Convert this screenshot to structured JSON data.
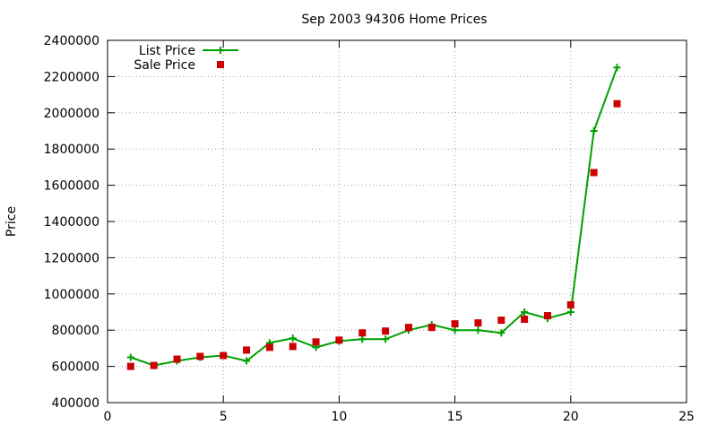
{
  "chart_data": {
    "type": "line",
    "title": "Sep 2003 94306 Home Prices",
    "xlabel": "",
    "ylabel": "Price",
    "xlim": [
      0,
      25
    ],
    "ylim": [
      400000,
      2400000
    ],
    "x_ticks": [
      "0",
      "5",
      "10",
      "15",
      "20",
      "25"
    ],
    "y_ticks": [
      "400000",
      "600000",
      "800000",
      "1000000",
      "1200000",
      "1400000",
      "1600000",
      "1800000",
      "2000000",
      "2200000",
      "2400000"
    ],
    "grid": true,
    "legend_position": "top-left",
    "series": [
      {
        "name": "List Price",
        "style": "line-with-plus-markers",
        "color": "#00a000",
        "points": [
          [
            1,
            650000
          ],
          [
            2,
            605000
          ],
          [
            3,
            630000
          ],
          [
            4,
            650000
          ],
          [
            5,
            660000
          ],
          [
            6,
            630000
          ],
          [
            7,
            730000
          ],
          [
            8,
            755000
          ],
          [
            9,
            705000
          ],
          [
            10,
            740000
          ],
          [
            11,
            750000
          ],
          [
            12,
            750000
          ],
          [
            13,
            800000
          ],
          [
            14,
            830000
          ],
          [
            15,
            800000
          ],
          [
            16,
            800000
          ],
          [
            17,
            785000
          ],
          [
            18,
            900000
          ],
          [
            19,
            865000
          ],
          [
            20,
            900000
          ],
          [
            21,
            1900000
          ],
          [
            22,
            2250000
          ]
        ]
      },
      {
        "name": "Sale Price",
        "style": "square-markers",
        "color": "#cc0000",
        "points": [
          [
            1,
            600000
          ],
          [
            2,
            605000
          ],
          [
            3,
            640000
          ],
          [
            4,
            655000
          ],
          [
            5,
            660000
          ],
          [
            6,
            690000
          ],
          [
            7,
            705000
          ],
          [
            8,
            710000
          ],
          [
            9,
            735000
          ],
          [
            10,
            745000
          ],
          [
            11,
            785000
          ],
          [
            12,
            795000
          ],
          [
            13,
            815000
          ],
          [
            14,
            815000
          ],
          [
            15,
            835000
          ],
          [
            16,
            840000
          ],
          [
            17,
            855000
          ],
          [
            18,
            860000
          ],
          [
            19,
            880000
          ],
          [
            20,
            940000
          ],
          [
            21,
            1670000
          ],
          [
            22,
            2050000
          ]
        ]
      }
    ]
  }
}
